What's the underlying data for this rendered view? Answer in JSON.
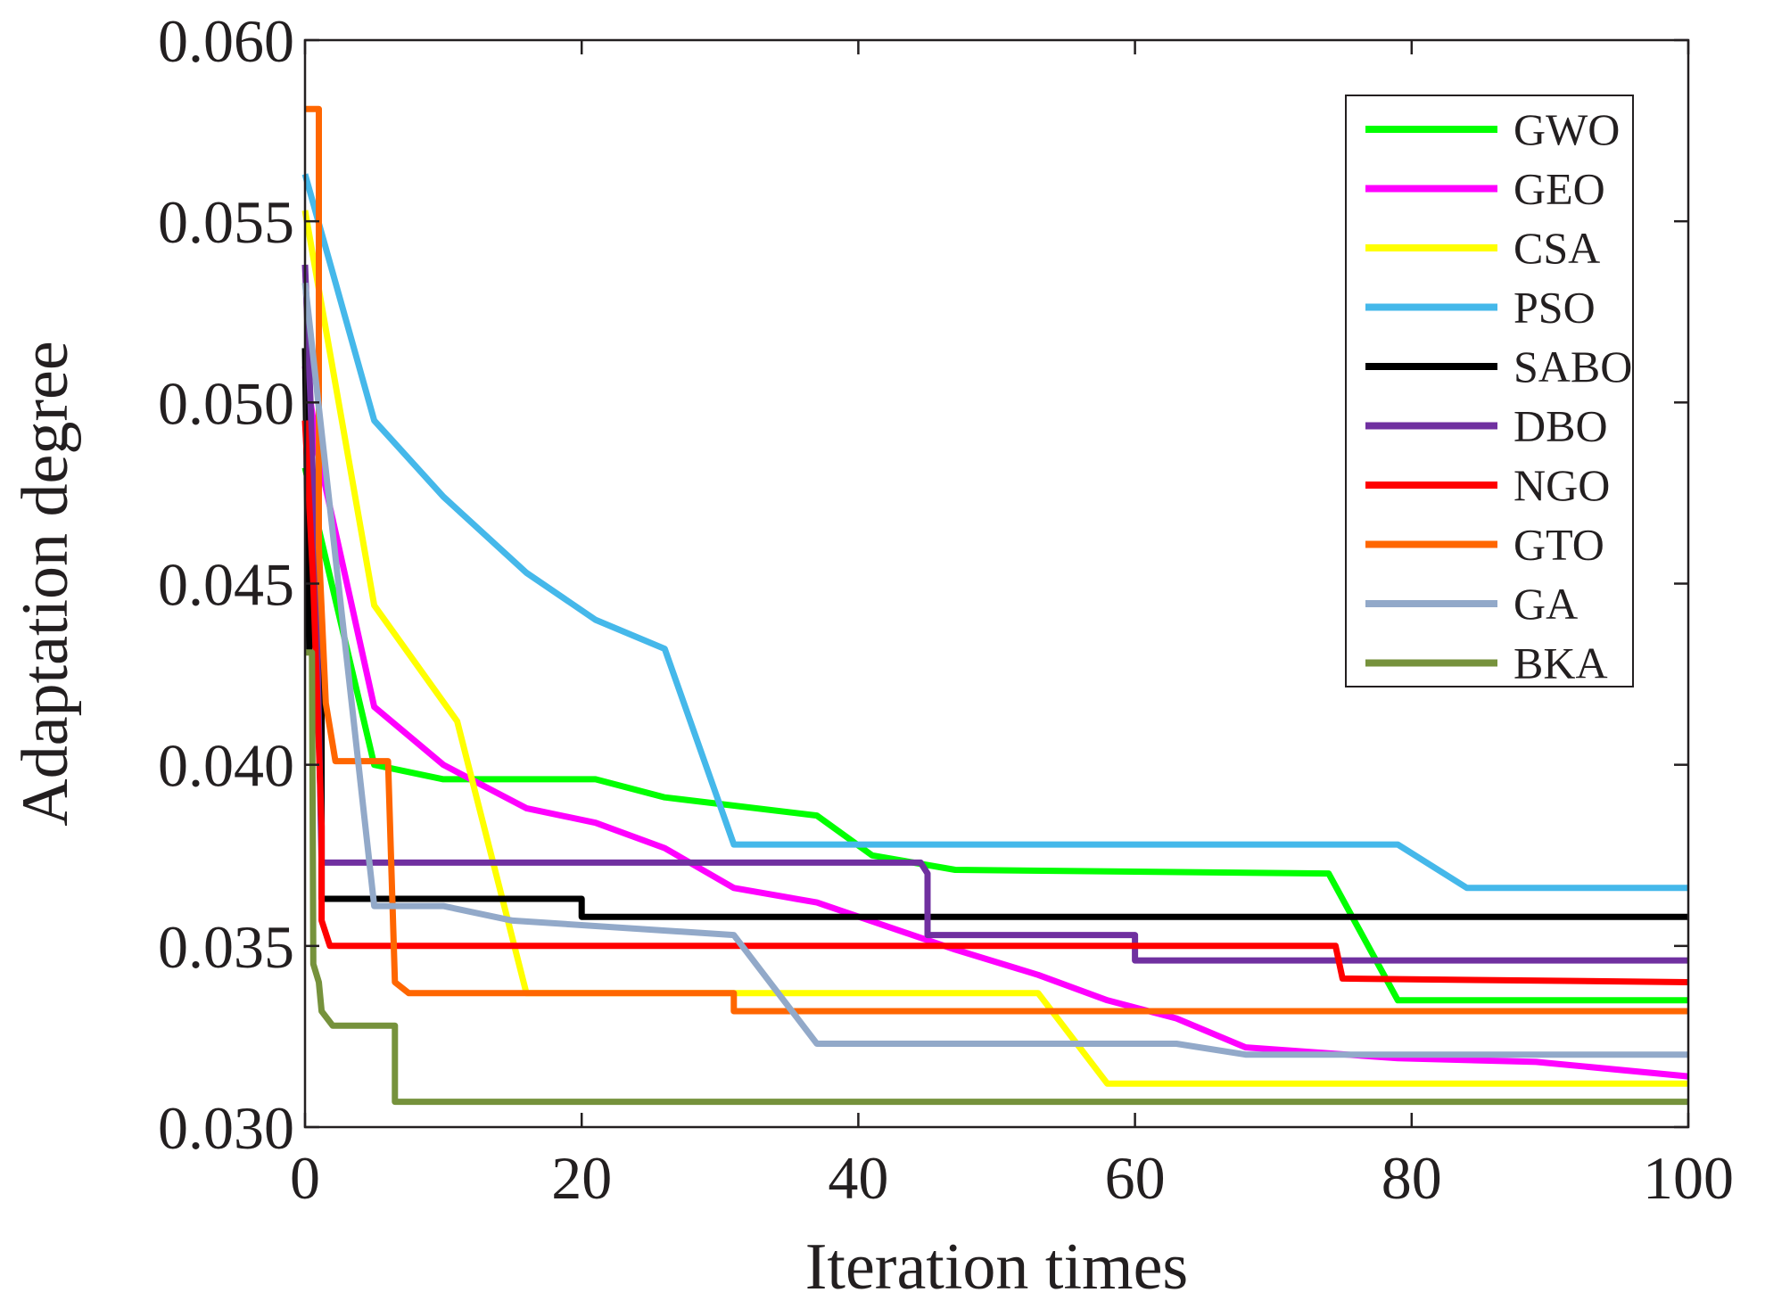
{
  "chart_data": {
    "type": "line",
    "title": "",
    "xlabel": "Iteration times",
    "ylabel": "Adaptation degree",
    "xlim": [
      0,
      100
    ],
    "ylim": [
      0.03,
      0.06
    ],
    "xticks": [
      0,
      20,
      40,
      60,
      80,
      100
    ],
    "xtick_labels": [
      "0",
      "20",
      "40",
      "60",
      "80",
      "100"
    ],
    "yticks": [
      0.03,
      0.035,
      0.04,
      0.045,
      0.05,
      0.055,
      0.06
    ],
    "ytick_labels": [
      "0.030",
      "0.035",
      "0.040",
      "0.045",
      "0.050",
      "0.055",
      "0.060"
    ],
    "grid": false,
    "legend_position": "top-right",
    "series": [
      {
        "name": "GWO",
        "color": "#00ff00",
        "x": [
          0,
          1,
          5,
          10,
          21,
          26,
          37,
          41,
          47,
          74,
          79,
          100
        ],
        "y": [
          0.0482,
          0.0465,
          0.04,
          0.0396,
          0.0396,
          0.0391,
          0.0386,
          0.0375,
          0.0371,
          0.037,
          0.0335,
          0.0335
        ]
      },
      {
        "name": "GEO",
        "color": "#ff00ff",
        "x": [
          0,
          1,
          5,
          10,
          16,
          21,
          26,
          31,
          37,
          47,
          53,
          58,
          63,
          68,
          79,
          89,
          100
        ],
        "y": [
          0.051,
          0.0485,
          0.0416,
          0.04,
          0.0388,
          0.0384,
          0.0377,
          0.0366,
          0.0362,
          0.0349,
          0.0342,
          0.0335,
          0.033,
          0.0322,
          0.0319,
          0.0318,
          0.0314
        ]
      },
      {
        "name": "CSA",
        "color": "#ffff00",
        "x": [
          0,
          5,
          11,
          16,
          53,
          58,
          100
        ],
        "y": [
          0.0553,
          0.0444,
          0.0412,
          0.0337,
          0.0337,
          0.0312,
          0.0312
        ]
      },
      {
        "name": "PSO",
        "color": "#45b8ea",
        "x": [
          0,
          5,
          10,
          16,
          21,
          26,
          31,
          79,
          84,
          100
        ],
        "y": [
          0.0563,
          0.0495,
          0.0474,
          0.0453,
          0.044,
          0.0432,
          0.0378,
          0.0378,
          0.0366,
          0.0366
        ]
      },
      {
        "name": "SABO",
        "color": "#000000",
        "x": [
          0,
          0.3,
          0.6,
          1.2,
          1.2,
          20,
          20,
          100
        ],
        "y": [
          0.0515,
          0.0432,
          0.044,
          0.044,
          0.0363,
          0.0363,
          0.0358,
          0.0358
        ]
      },
      {
        "name": "DBO",
        "color": "#7030a0",
        "x": [
          0,
          0.4,
          0.8,
          1.2,
          44.5,
          45,
          45,
          60,
          60,
          100
        ],
        "y": [
          0.0538,
          0.05,
          0.045,
          0.0373,
          0.0373,
          0.037,
          0.0353,
          0.0353,
          0.0346,
          0.0346
        ]
      },
      {
        "name": "NGO",
        "color": "#ff0000",
        "x": [
          0,
          0.6,
          1.2,
          1.2,
          1.8,
          74.5,
          75,
          100
        ],
        "y": [
          0.0495,
          0.045,
          0.0383,
          0.0357,
          0.035,
          0.035,
          0.0341,
          0.034
        ]
      },
      {
        "name": "GTO",
        "color": "#ff6600",
        "x": [
          0,
          1.0,
          1.0,
          1.5,
          2.2,
          6,
          6.5,
          7.5,
          31,
          31,
          100
        ],
        "y": [
          0.0581,
          0.0581,
          0.046,
          0.0417,
          0.0401,
          0.0401,
          0.034,
          0.0337,
          0.0337,
          0.0332,
          0.0332
        ]
      },
      {
        "name": "GA",
        "color": "#92a9c9",
        "x": [
          0,
          5,
          10,
          15,
          31,
          37,
          63,
          68,
          100
        ],
        "y": [
          0.0533,
          0.0361,
          0.0361,
          0.0357,
          0.0353,
          0.0323,
          0.0323,
          0.032,
          0.032
        ]
      },
      {
        "name": "BKA",
        "color": "#76923c",
        "x": [
          0,
          0.5,
          0.6,
          1.0,
          1.2,
          2,
          6.5,
          6.5,
          100
        ],
        "y": [
          0.0431,
          0.0431,
          0.0345,
          0.034,
          0.0332,
          0.0328,
          0.0328,
          0.0307,
          0.0307
        ]
      }
    ]
  }
}
